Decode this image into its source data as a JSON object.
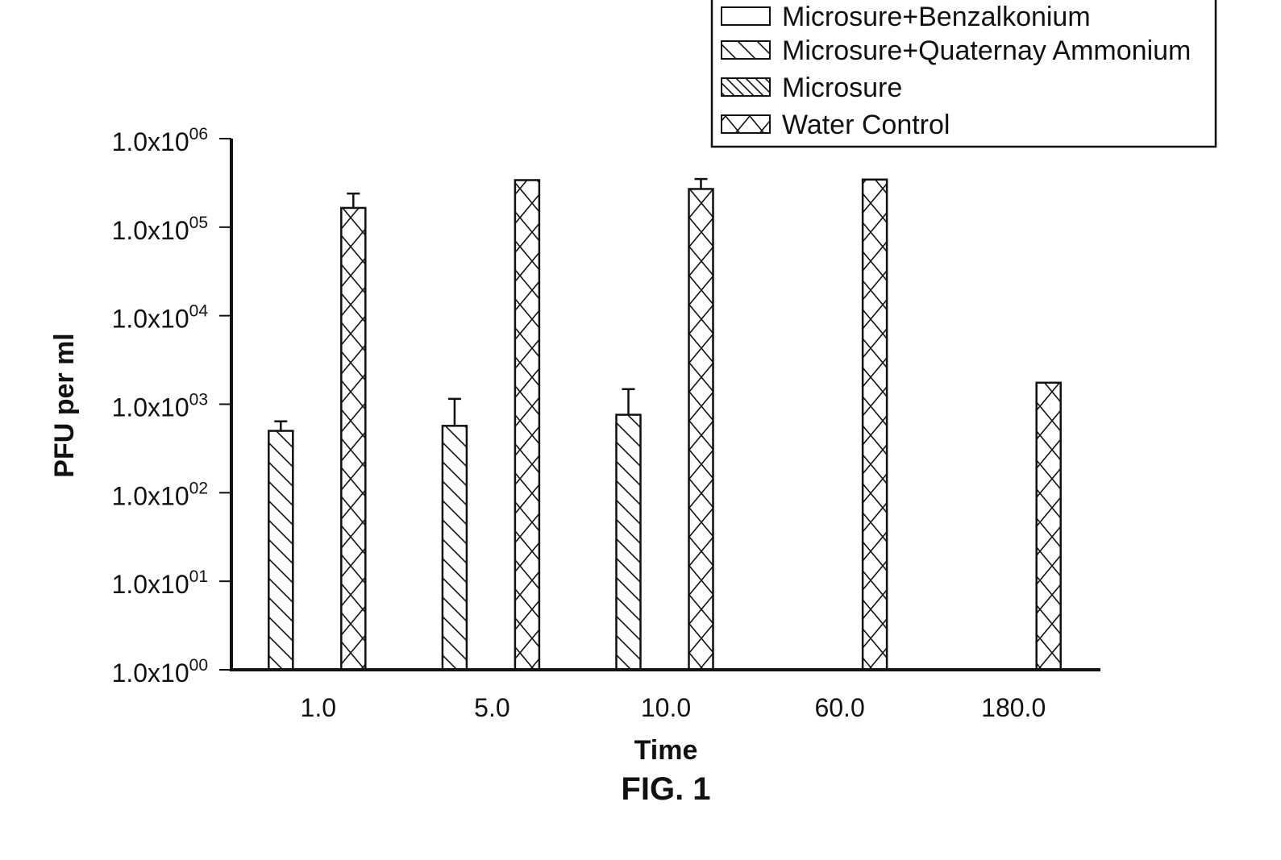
{
  "chart_data": {
    "type": "bar",
    "title": "",
    "figure_caption": "FIG. 1",
    "xlabel": "Time",
    "ylabel": "PFU per ml",
    "y_scale": "log",
    "ylim": [
      1,
      1000000
    ],
    "y_ticks": [
      {
        "base": "1.0x10",
        "exp": "00"
      },
      {
        "base": "1.0x10",
        "exp": "01"
      },
      {
        "base": "1.0x10",
        "exp": "02"
      },
      {
        "base": "1.0x10",
        "exp": "03"
      },
      {
        "base": "1.0x10",
        "exp": "04"
      },
      {
        "base": "1.0x10",
        "exp": "05"
      },
      {
        "base": "1.0x10",
        "exp": "06"
      }
    ],
    "categories": [
      "1.0",
      "5.0",
      "10.0",
      "60.0",
      "180.0"
    ],
    "legend_position": "top-right",
    "grid": false,
    "series": [
      {
        "name": "Microsure+Benzalkonium",
        "pattern": "none",
        "values": [
          null,
          null,
          null,
          null,
          null
        ],
        "error_upper": [
          null,
          null,
          null,
          null,
          null
        ]
      },
      {
        "name": "Microsure+Quaternay Ammonium",
        "pattern": "diagonal-sparse",
        "values": [
          500,
          570,
          760,
          null,
          null
        ],
        "error_upper": [
          640,
          1150,
          1480,
          null,
          null
        ]
      },
      {
        "name": "Microsure",
        "pattern": "diagonal-dense",
        "values": [
          null,
          null,
          null,
          null,
          null
        ],
        "error_upper": [
          null,
          null,
          null,
          null,
          null
        ]
      },
      {
        "name": "Water Control",
        "pattern": "crosshatch",
        "values": [
          165000,
          340000,
          270000,
          345000,
          1750
        ],
        "error_upper": [
          240000,
          null,
          350000,
          null,
          null
        ]
      }
    ]
  }
}
